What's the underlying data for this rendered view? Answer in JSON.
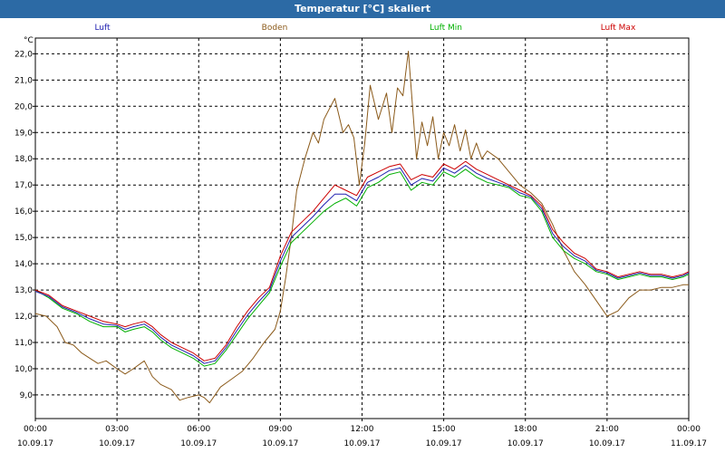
{
  "window": {
    "title": "Temperatur [°C] skaliert"
  },
  "chart_data": {
    "type": "line",
    "title": "Temperatur [°C] skaliert",
    "ylabel": "°C",
    "xlabel": "",
    "ylim": [
      8.1,
      22.6
    ],
    "xlim": [
      0,
      24
    ],
    "grid": true,
    "legend_position": "top",
    "y_ticks": [
      "9,0",
      "10,0",
      "11,0",
      "12,0",
      "13,0",
      "14,0",
      "15,0",
      "16,0",
      "17,0",
      "18,0",
      "19,0",
      "20,0",
      "21,0",
      "22,0"
    ],
    "x_ticks": [
      {
        "hours": 0,
        "time": "00:00",
        "date": "10.09.17"
      },
      {
        "hours": 3,
        "time": "03:00",
        "date": "10.09.17"
      },
      {
        "hours": 6,
        "time": "06:00",
        "date": "10.09.17"
      },
      {
        "hours": 9,
        "time": "09:00",
        "date": "10.09.17"
      },
      {
        "hours": 12,
        "time": "12:00",
        "date": "10.09.17"
      },
      {
        "hours": 15,
        "time": "15:00",
        "date": "10.09.17"
      },
      {
        "hours": 18,
        "time": "18:00",
        "date": "10.09.17"
      },
      {
        "hours": 21,
        "time": "21:00",
        "date": "10.09.17"
      },
      {
        "hours": 24,
        "time": "00:00",
        "date": "11.09.17"
      }
    ],
    "series": [
      {
        "name": "Boden",
        "color": "#8b5a1a",
        "points": [
          [
            0,
            12.1
          ],
          [
            0.4,
            12.0
          ],
          [
            0.8,
            11.6
          ],
          [
            1.1,
            11.0
          ],
          [
            1.4,
            10.9
          ],
          [
            1.7,
            10.6
          ],
          [
            2.0,
            10.4
          ],
          [
            2.3,
            10.2
          ],
          [
            2.6,
            10.3
          ],
          [
            3.0,
            10.0
          ],
          [
            3.3,
            9.8
          ],
          [
            3.6,
            10.0
          ],
          [
            4.0,
            10.3
          ],
          [
            4.3,
            9.7
          ],
          [
            4.6,
            9.4
          ],
          [
            5.0,
            9.2
          ],
          [
            5.3,
            8.8
          ],
          [
            5.6,
            8.9
          ],
          [
            6.0,
            9.0
          ],
          [
            6.2,
            8.9
          ],
          [
            6.4,
            8.7
          ],
          [
            6.8,
            9.3
          ],
          [
            7.2,
            9.6
          ],
          [
            7.6,
            9.9
          ],
          [
            8.0,
            10.4
          ],
          [
            8.4,
            11.0
          ],
          [
            8.8,
            11.5
          ],
          [
            9.0,
            12.2
          ],
          [
            9.2,
            13.5
          ],
          [
            9.4,
            15.0
          ],
          [
            9.6,
            16.8
          ],
          [
            9.9,
            18.0
          ],
          [
            10.2,
            19.0
          ],
          [
            10.4,
            18.6
          ],
          [
            10.6,
            19.5
          ],
          [
            10.8,
            19.9
          ],
          [
            11.0,
            20.3
          ],
          [
            11.3,
            19.0
          ],
          [
            11.5,
            19.3
          ],
          [
            11.7,
            18.8
          ],
          [
            11.9,
            17.0
          ],
          [
            12.1,
            18.6
          ],
          [
            12.3,
            20.8
          ],
          [
            12.6,
            19.5
          ],
          [
            12.9,
            20.5
          ],
          [
            13.1,
            19.0
          ],
          [
            13.3,
            20.7
          ],
          [
            13.5,
            20.4
          ],
          [
            13.7,
            22.1
          ],
          [
            14.0,
            18.0
          ],
          [
            14.2,
            19.4
          ],
          [
            14.4,
            18.5
          ],
          [
            14.6,
            19.6
          ],
          [
            14.8,
            18.0
          ],
          [
            15.0,
            19.0
          ],
          [
            15.2,
            18.5
          ],
          [
            15.4,
            19.3
          ],
          [
            15.6,
            18.3
          ],
          [
            15.8,
            19.1
          ],
          [
            16.0,
            18.0
          ],
          [
            16.2,
            18.6
          ],
          [
            16.4,
            18.0
          ],
          [
            16.6,
            18.3
          ],
          [
            17.0,
            18.0
          ],
          [
            17.4,
            17.5
          ],
          [
            17.8,
            17.0
          ],
          [
            18.2,
            16.7
          ],
          [
            18.6,
            16.3
          ],
          [
            19.0,
            15.5
          ],
          [
            19.4,
            14.5
          ],
          [
            19.8,
            13.7
          ],
          [
            20.2,
            13.2
          ],
          [
            20.6,
            12.6
          ],
          [
            21.0,
            12.0
          ],
          [
            21.4,
            12.2
          ],
          [
            21.8,
            12.7
          ],
          [
            22.2,
            13.0
          ],
          [
            22.6,
            13.0
          ],
          [
            23.0,
            13.1
          ],
          [
            23.4,
            13.1
          ],
          [
            23.8,
            13.2
          ],
          [
            24.0,
            13.2
          ]
        ]
      },
      {
        "name": "Luft Min",
        "color": "#00b000",
        "points": [
          [
            0,
            13.0
          ],
          [
            0.5,
            12.7
          ],
          [
            1.0,
            12.3
          ],
          [
            1.5,
            12.1
          ],
          [
            2.0,
            11.8
          ],
          [
            2.5,
            11.6
          ],
          [
            3.0,
            11.6
          ],
          [
            3.3,
            11.4
          ],
          [
            3.6,
            11.5
          ],
          [
            4.0,
            11.6
          ],
          [
            4.3,
            11.4
          ],
          [
            4.6,
            11.1
          ],
          [
            5.0,
            10.8
          ],
          [
            5.4,
            10.6
          ],
          [
            5.8,
            10.4
          ],
          [
            6.2,
            10.1
          ],
          [
            6.6,
            10.2
          ],
          [
            7.0,
            10.7
          ],
          [
            7.4,
            11.3
          ],
          [
            7.8,
            11.9
          ],
          [
            8.2,
            12.4
          ],
          [
            8.6,
            12.9
          ],
          [
            9.0,
            13.9
          ],
          [
            9.4,
            14.8
          ],
          [
            9.8,
            15.2
          ],
          [
            10.2,
            15.6
          ],
          [
            10.6,
            16.0
          ],
          [
            11.0,
            16.3
          ],
          [
            11.4,
            16.5
          ],
          [
            11.8,
            16.2
          ],
          [
            12.2,
            16.9
          ],
          [
            12.6,
            17.1
          ],
          [
            13.0,
            17.4
          ],
          [
            13.4,
            17.5
          ],
          [
            13.8,
            16.8
          ],
          [
            14.2,
            17.1
          ],
          [
            14.6,
            17.0
          ],
          [
            15.0,
            17.5
          ],
          [
            15.4,
            17.3
          ],
          [
            15.8,
            17.6
          ],
          [
            16.2,
            17.3
          ],
          [
            16.6,
            17.1
          ],
          [
            17.0,
            17.0
          ],
          [
            17.4,
            16.9
          ],
          [
            17.8,
            16.6
          ],
          [
            18.2,
            16.5
          ],
          [
            18.6,
            16.0
          ],
          [
            19.0,
            15.0
          ],
          [
            19.4,
            14.5
          ],
          [
            19.8,
            14.2
          ],
          [
            20.2,
            14.0
          ],
          [
            20.6,
            13.7
          ],
          [
            21.0,
            13.6
          ],
          [
            21.4,
            13.4
          ],
          [
            21.8,
            13.5
          ],
          [
            22.2,
            13.6
          ],
          [
            22.6,
            13.5
          ],
          [
            23.0,
            13.5
          ],
          [
            23.4,
            13.4
          ],
          [
            23.8,
            13.5
          ],
          [
            24.0,
            13.6
          ]
        ]
      },
      {
        "name": "Luft Max",
        "color": "#cc0000",
        "points": [
          [
            0,
            13.0
          ],
          [
            0.5,
            12.8
          ],
          [
            1.0,
            12.4
          ],
          [
            1.5,
            12.2
          ],
          [
            2.0,
            12.0
          ],
          [
            2.5,
            11.8
          ],
          [
            3.0,
            11.7
          ],
          [
            3.3,
            11.6
          ],
          [
            3.6,
            11.7
          ],
          [
            4.0,
            11.8
          ],
          [
            4.3,
            11.6
          ],
          [
            4.6,
            11.3
          ],
          [
            5.0,
            11.0
          ],
          [
            5.4,
            10.8
          ],
          [
            5.8,
            10.6
          ],
          [
            6.2,
            10.3
          ],
          [
            6.6,
            10.4
          ],
          [
            7.0,
            10.9
          ],
          [
            7.4,
            11.6
          ],
          [
            7.8,
            12.2
          ],
          [
            8.2,
            12.7
          ],
          [
            8.6,
            13.1
          ],
          [
            9.0,
            14.3
          ],
          [
            9.4,
            15.2
          ],
          [
            9.8,
            15.6
          ],
          [
            10.2,
            16.0
          ],
          [
            10.6,
            16.5
          ],
          [
            11.0,
            17.0
          ],
          [
            11.4,
            16.8
          ],
          [
            11.8,
            16.6
          ],
          [
            12.2,
            17.3
          ],
          [
            12.6,
            17.5
          ],
          [
            13.0,
            17.7
          ],
          [
            13.4,
            17.8
          ],
          [
            13.8,
            17.2
          ],
          [
            14.2,
            17.4
          ],
          [
            14.6,
            17.3
          ],
          [
            15.0,
            17.8
          ],
          [
            15.4,
            17.6
          ],
          [
            15.8,
            17.9
          ],
          [
            16.2,
            17.6
          ],
          [
            16.6,
            17.4
          ],
          [
            17.0,
            17.2
          ],
          [
            17.4,
            17.0
          ],
          [
            17.8,
            16.8
          ],
          [
            18.2,
            16.6
          ],
          [
            18.6,
            16.2
          ],
          [
            19.0,
            15.3
          ],
          [
            19.4,
            14.8
          ],
          [
            19.8,
            14.4
          ],
          [
            20.2,
            14.2
          ],
          [
            20.6,
            13.8
          ],
          [
            21.0,
            13.7
          ],
          [
            21.4,
            13.5
          ],
          [
            21.8,
            13.6
          ],
          [
            22.2,
            13.7
          ],
          [
            22.6,
            13.6
          ],
          [
            23.0,
            13.6
          ],
          [
            23.4,
            13.5
          ],
          [
            23.8,
            13.6
          ],
          [
            24.0,
            13.7
          ]
        ]
      },
      {
        "name": "Luft",
        "color": "#2020b0",
        "points": [
          [
            0,
            12.95
          ],
          [
            0.5,
            12.75
          ],
          [
            1.0,
            12.35
          ],
          [
            1.5,
            12.15
          ],
          [
            2.0,
            11.9
          ],
          [
            2.5,
            11.7
          ],
          [
            3.0,
            11.65
          ],
          [
            3.3,
            11.5
          ],
          [
            3.6,
            11.6
          ],
          [
            4.0,
            11.7
          ],
          [
            4.3,
            11.5
          ],
          [
            4.6,
            11.2
          ],
          [
            5.0,
            10.9
          ],
          [
            5.4,
            10.7
          ],
          [
            5.8,
            10.5
          ],
          [
            6.2,
            10.2
          ],
          [
            6.6,
            10.3
          ],
          [
            7.0,
            10.8
          ],
          [
            7.4,
            11.45
          ],
          [
            7.8,
            12.05
          ],
          [
            8.2,
            12.55
          ],
          [
            8.6,
            13.0
          ],
          [
            9.0,
            14.1
          ],
          [
            9.4,
            15.0
          ],
          [
            9.8,
            15.4
          ],
          [
            10.2,
            15.8
          ],
          [
            10.6,
            16.25
          ],
          [
            11.0,
            16.65
          ],
          [
            11.4,
            16.65
          ],
          [
            11.8,
            16.4
          ],
          [
            12.2,
            17.1
          ],
          [
            12.6,
            17.3
          ],
          [
            13.0,
            17.55
          ],
          [
            13.4,
            17.65
          ],
          [
            13.8,
            17.0
          ],
          [
            14.2,
            17.25
          ],
          [
            14.6,
            17.15
          ],
          [
            15.0,
            17.65
          ],
          [
            15.4,
            17.45
          ],
          [
            15.8,
            17.75
          ],
          [
            16.2,
            17.45
          ],
          [
            16.6,
            17.25
          ],
          [
            17.0,
            17.1
          ],
          [
            17.4,
            16.95
          ],
          [
            17.8,
            16.7
          ],
          [
            18.2,
            16.55
          ],
          [
            18.6,
            16.1
          ],
          [
            19.0,
            15.15
          ],
          [
            19.4,
            14.65
          ],
          [
            19.8,
            14.3
          ],
          [
            20.2,
            14.1
          ],
          [
            20.6,
            13.75
          ],
          [
            21.0,
            13.65
          ],
          [
            21.4,
            13.45
          ],
          [
            21.8,
            13.55
          ],
          [
            22.2,
            13.65
          ],
          [
            22.6,
            13.55
          ],
          [
            23.0,
            13.55
          ],
          [
            23.4,
            13.45
          ],
          [
            23.8,
            13.55
          ],
          [
            24.0,
            13.65
          ]
        ]
      }
    ],
    "legend": [
      {
        "name": "Luft",
        "color": "#2020b0"
      },
      {
        "name": "Boden",
        "color": "#8b5a1a"
      },
      {
        "name": "Luft Min",
        "color": "#00b000"
      },
      {
        "name": "Luft Max",
        "color": "#cc0000"
      }
    ]
  }
}
